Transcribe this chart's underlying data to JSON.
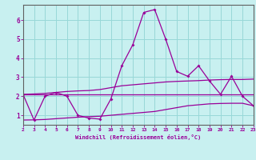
{
  "x": [
    2,
    3,
    4,
    5,
    6,
    7,
    8,
    9,
    10,
    11,
    12,
    13,
    14,
    15,
    16,
    17,
    18,
    19,
    20,
    21,
    22,
    23
  ],
  "line1": [
    2.1,
    0.75,
    2.0,
    2.2,
    2.0,
    1.0,
    0.85,
    0.8,
    1.85,
    3.6,
    4.7,
    6.4,
    6.55,
    5.0,
    3.3,
    3.05,
    3.6,
    2.8,
    2.1,
    3.05,
    2.0,
    1.5
  ],
  "line2": [
    2.1,
    2.1,
    2.1,
    2.1,
    2.1,
    2.1,
    2.1,
    2.1,
    2.1,
    2.1,
    2.1,
    2.1,
    2.1,
    2.1,
    2.1,
    2.1,
    2.1,
    2.1,
    2.1,
    2.1,
    2.1,
    2.1
  ],
  "line3": [
    0.75,
    0.76,
    0.78,
    0.82,
    0.86,
    0.9,
    0.93,
    0.95,
    1.0,
    1.05,
    1.1,
    1.15,
    1.2,
    1.3,
    1.4,
    1.5,
    1.55,
    1.6,
    1.62,
    1.63,
    1.63,
    1.5
  ],
  "line4": [
    2.1,
    2.12,
    2.15,
    2.2,
    2.25,
    2.28,
    2.3,
    2.35,
    2.45,
    2.55,
    2.6,
    2.65,
    2.7,
    2.75,
    2.78,
    2.8,
    2.82,
    2.85,
    2.87,
    2.88,
    2.88,
    2.9
  ],
  "xlabel": "Windchill (Refroidissement éolien,°C)",
  "line_color": "#990099",
  "bg_color": "#c8f0f0",
  "grid_color": "#98d8d8",
  "ylim": [
    0.5,
    6.8
  ],
  "xlim": [
    2,
    23
  ],
  "yticks": [
    1,
    2,
    3,
    4,
    5,
    6
  ],
  "xticks": [
    2,
    3,
    4,
    5,
    6,
    7,
    8,
    9,
    10,
    11,
    12,
    13,
    14,
    15,
    16,
    17,
    18,
    19,
    20,
    21,
    22,
    23
  ]
}
